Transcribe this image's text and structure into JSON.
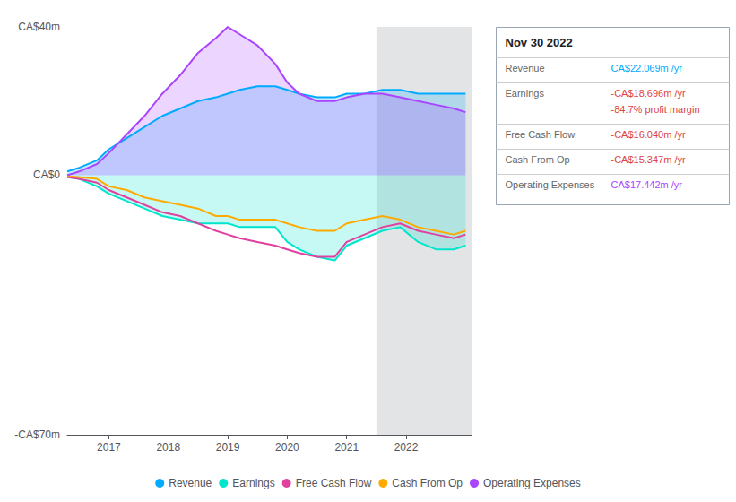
{
  "chart_data": {
    "type": "line",
    "x": [
      2016.3,
      2016.5,
      2016.8,
      2017.0,
      2017.3,
      2017.6,
      2017.9,
      2018.2,
      2018.5,
      2018.8,
      2019.0,
      2019.2,
      2019.5,
      2019.8,
      2020.0,
      2020.2,
      2020.5,
      2020.8,
      2021.0,
      2021.3,
      2021.6,
      2021.9,
      2022.2,
      2022.5,
      2022.8,
      2023.0
    ],
    "series": [
      {
        "name": "Revenue",
        "color": "#00aaff",
        "type": "area",
        "values": [
          1,
          2,
          4,
          7,
          10,
          13,
          16,
          18,
          20,
          21,
          22,
          23,
          24,
          24,
          23,
          22,
          21,
          21,
          22,
          22,
          23,
          23,
          22,
          22,
          22,
          22
        ]
      },
      {
        "name": "Earnings",
        "color": "#00e5cc",
        "type": "area",
        "values": [
          -0.5,
          -1,
          -3,
          -5,
          -7,
          -9,
          -11,
          -12,
          -13,
          -13,
          -13,
          -14,
          -14,
          -14,
          -18,
          -20,
          -22,
          -23,
          -19,
          -17,
          -15,
          -14,
          -18,
          -20,
          -20,
          -19
        ]
      },
      {
        "name": "Free Cash Flow",
        "color": "#e040a0",
        "type": "line",
        "values": [
          -0.5,
          -1,
          -2,
          -4,
          -6,
          -8,
          -10,
          -11,
          -13,
          -15,
          -16,
          -17,
          -18,
          -19,
          -20,
          -21,
          -22,
          -22,
          -18,
          -16,
          -14,
          -13,
          -15,
          -16,
          -17,
          -16
        ]
      },
      {
        "name": "Cash From Op",
        "color": "#ffaa00",
        "type": "line",
        "values": [
          -0.3,
          -0.5,
          -1,
          -3,
          -4,
          -6,
          -7,
          -8,
          -9,
          -11,
          -11,
          -12,
          -12,
          -12,
          -13,
          -14,
          -15,
          -15,
          -13,
          -12,
          -11,
          -12,
          -14,
          -15,
          -16,
          -15
        ]
      },
      {
        "name": "Operating Expenses",
        "color": "#aa44ff",
        "type": "area",
        "values": [
          0,
          1,
          3,
          6,
          11,
          16,
          22,
          27,
          33,
          37,
          40,
          38,
          35,
          30,
          25,
          22,
          20,
          20,
          21,
          22,
          22,
          21,
          20,
          19,
          18,
          17
        ]
      }
    ],
    "xlim": [
      2016.3,
      2023.1
    ],
    "xticks": [
      2017,
      2018,
      2019,
      2020,
      2021,
      2022
    ],
    "ylim": [
      -70,
      40
    ],
    "yticks": [
      {
        "value": -70,
        "label": "-CA$70m"
      },
      {
        "value": 0,
        "label": "CA$0"
      },
      {
        "value": 40,
        "label": "CA$40m"
      }
    ],
    "grid": false,
    "legend": "bottom",
    "highlight_x": [
      2021.5,
      2023.1
    ],
    "annotations": [
      {
        "title": "Nov 30 2022",
        "rows": [
          {
            "label": "Revenue",
            "text": [
              "CA$22.069m /yr"
            ],
            "color": "#00aaff"
          },
          {
            "label": "Earnings",
            "text": [
              "-CA$18.696m /yr",
              "-84.7% profit margin"
            ],
            "color": "#dd4444"
          },
          {
            "label": "Free Cash Flow",
            "text": [
              "-CA$16.040m /yr"
            ],
            "color": "#dd4444"
          },
          {
            "label": "Cash From Op",
            "text": [
              "-CA$15.347m /yr"
            ],
            "color": "#dd4444"
          },
          {
            "label": "Operating Expenses",
            "text": [
              "CA$17.442m /yr"
            ],
            "color": "#aa44ff"
          }
        ]
      }
    ]
  }
}
